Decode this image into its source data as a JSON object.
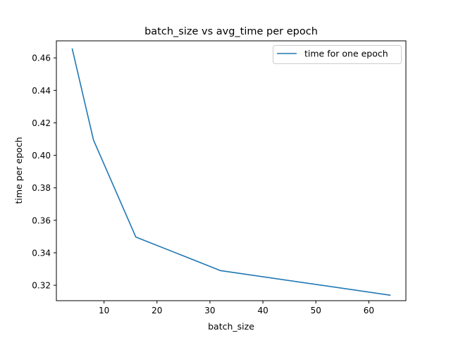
{
  "chart_data": {
    "type": "line",
    "title": "batch_size vs avg_time per epoch",
    "xlabel": "batch_size",
    "ylabel": "time per epoch",
    "xlim": [
      1,
      67
    ],
    "ylim": [
      0.3105,
      0.4705
    ],
    "x_ticks": [
      10,
      20,
      30,
      40,
      50,
      60
    ],
    "x_tick_labels": [
      "10",
      "20",
      "30",
      "40",
      "50",
      "60"
    ],
    "y_ticks": [
      0.32,
      0.34,
      0.36,
      0.38,
      0.4,
      0.42,
      0.44,
      0.46
    ],
    "y_tick_labels": [
      "0.32",
      "0.34",
      "0.36",
      "0.38",
      "0.40",
      "0.42",
      "0.44",
      "0.46"
    ],
    "grid": false,
    "legend_position": "top-right",
    "series": [
      {
        "name": "time for one epoch",
        "color": "#1f77b4",
        "x": [
          4,
          8,
          16,
          32,
          64
        ],
        "y": [
          0.4655,
          0.4095,
          0.3497,
          0.329,
          0.3139
        ]
      }
    ]
  }
}
